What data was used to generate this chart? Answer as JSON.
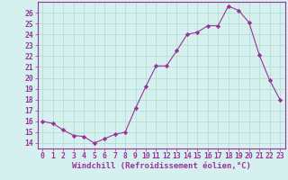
{
  "x": [
    0,
    1,
    2,
    3,
    4,
    5,
    6,
    7,
    8,
    9,
    10,
    11,
    12,
    13,
    14,
    15,
    16,
    17,
    18,
    19,
    20,
    21,
    22,
    23
  ],
  "y": [
    16.0,
    15.8,
    15.2,
    14.7,
    14.6,
    14.0,
    14.4,
    14.8,
    15.0,
    17.2,
    19.2,
    21.1,
    21.1,
    22.5,
    24.0,
    24.2,
    24.8,
    24.8,
    26.6,
    26.2,
    25.1,
    22.1,
    19.8,
    18.0
  ],
  "line_color": "#993399",
  "marker": "D",
  "marker_size": 2.2,
  "background_color": "#d5f0ee",
  "grid_color": "#aaddcc",
  "xlabel": "Windchill (Refroidissement éolien,°C)",
  "xlabel_fontsize": 6.5,
  "xlim": [
    -0.5,
    23.5
  ],
  "ylim": [
    13.5,
    27.0
  ],
  "yticks": [
    14,
    15,
    16,
    17,
    18,
    19,
    20,
    21,
    22,
    23,
    24,
    25,
    26
  ],
  "xticks": [
    0,
    1,
    2,
    3,
    4,
    5,
    6,
    7,
    8,
    9,
    10,
    11,
    12,
    13,
    14,
    15,
    16,
    17,
    18,
    19,
    20,
    21,
    22,
    23
  ],
  "tick_fontsize": 5.8,
  "axis_color": "#993399",
  "spine_color": "#993399"
}
